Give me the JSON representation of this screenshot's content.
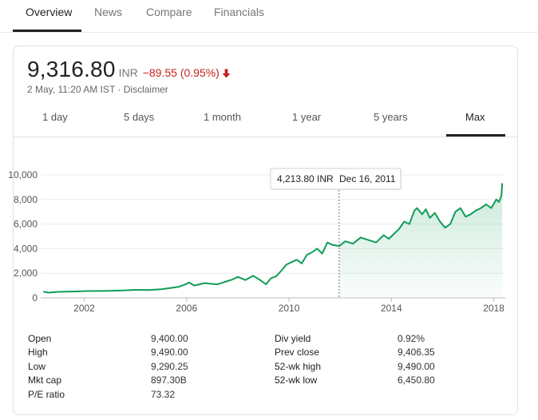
{
  "tabs": [
    {
      "label": "Overview",
      "active": true
    },
    {
      "label": "News",
      "active": false
    },
    {
      "label": "Compare",
      "active": false
    },
    {
      "label": "Financials",
      "active": false
    }
  ],
  "quote": {
    "price": "9,316.80",
    "currency": "INR",
    "change": "−89.55 (0.95%)",
    "change_color": "#c5221f",
    "direction_icon": "arrow-down-icon",
    "timestamp": "2 May, 11:20 AM IST",
    "separator": "·",
    "disclaimer": "Disclaimer"
  },
  "ranges": [
    {
      "label": "1 day",
      "active": false
    },
    {
      "label": "5 days",
      "active": false
    },
    {
      "label": "1 month",
      "active": false
    },
    {
      "label": "1 year",
      "active": false
    },
    {
      "label": "5 years",
      "active": false
    },
    {
      "label": "Max",
      "active": true
    }
  ],
  "chart_data": {
    "type": "area",
    "line_color": "#0f9d58",
    "x": [
      2000.4,
      2000.6,
      2000.9,
      2001.3,
      2001.7,
      2002.1,
      2002.6,
      2003.0,
      2003.5,
      2004.0,
      2004.5,
      2005.0,
      2005.3,
      2005.7,
      2005.9,
      2006.1,
      2006.3,
      2006.5,
      2006.7,
      2006.9,
      2007.2,
      2007.5,
      2007.8,
      2008.0,
      2008.3,
      2008.6,
      2008.9,
      2009.1,
      2009.3,
      2009.5,
      2009.7,
      2009.9,
      2010.1,
      2010.3,
      2010.5,
      2010.7,
      2010.9,
      2011.1,
      2011.3,
      2011.5,
      2011.7,
      2011.96,
      2012.2,
      2012.5,
      2012.8,
      2013.1,
      2013.4,
      2013.7,
      2013.9,
      2014.1,
      2014.3,
      2014.5,
      2014.7,
      2014.9,
      2015.0,
      2015.2,
      2015.35,
      2015.5,
      2015.7,
      2015.9,
      2016.1,
      2016.3,
      2016.5,
      2016.7,
      2016.9,
      2017.1,
      2017.3,
      2017.5,
      2017.7,
      2017.9,
      2018.1,
      2018.2,
      2018.3,
      2018.33
    ],
    "y": [
      500,
      420,
      480,
      500,
      520,
      550,
      560,
      570,
      600,
      650,
      630,
      700,
      780,
      900,
      1050,
      1250,
      1000,
      1100,
      1200,
      1150,
      1100,
      1300,
      1500,
      1700,
      1450,
      1800,
      1400,
      1100,
      1600,
      1750,
      2200,
      2700,
      2900,
      3100,
      2800,
      3500,
      3700,
      4000,
      3600,
      4500,
      4300,
      4213.8,
      4600,
      4400,
      4900,
      4700,
      4500,
      5100,
      4800,
      5200,
      5600,
      6200,
      6000,
      7100,
      7300,
      6800,
      7200,
      6500,
      6900,
      6200,
      5700,
      6000,
      7000,
      7300,
      6600,
      6800,
      7100,
      7300,
      7600,
      7300,
      8000,
      7800,
      8300,
      9316.8
    ],
    "x_ticks": [
      2002,
      2006,
      2010,
      2014,
      2018
    ],
    "y_ticks": [
      0,
      2000,
      4000,
      6000,
      8000,
      10000
    ],
    "y_tick_labels": [
      "0",
      "2,000",
      "4,000",
      "6,000",
      "8,000",
      "10,000"
    ],
    "xlim": [
      2000.3,
      2018.45
    ],
    "ylim": [
      0,
      10000
    ],
    "grid": true,
    "tooltip": {
      "value": "4,213.80 INR",
      "date": "Dec 16, 2011",
      "x": 2011.96
    },
    "xlabel": "",
    "ylabel": ""
  },
  "stats_left": [
    {
      "label": "Open",
      "value": "9,400.00"
    },
    {
      "label": "High",
      "value": "9,490.00"
    },
    {
      "label": "Low",
      "value": "9,290.25"
    },
    {
      "label": "Mkt cap",
      "value": "897.30B"
    },
    {
      "label": "P/E ratio",
      "value": "73.32"
    }
  ],
  "stats_right": [
    {
      "label": "Div yield",
      "value": "0.92%"
    },
    {
      "label": "Prev close",
      "value": "9,406.35"
    },
    {
      "label": "52-wk high",
      "value": "9,490.00"
    },
    {
      "label": "52-wk low",
      "value": "6,450.80"
    }
  ]
}
